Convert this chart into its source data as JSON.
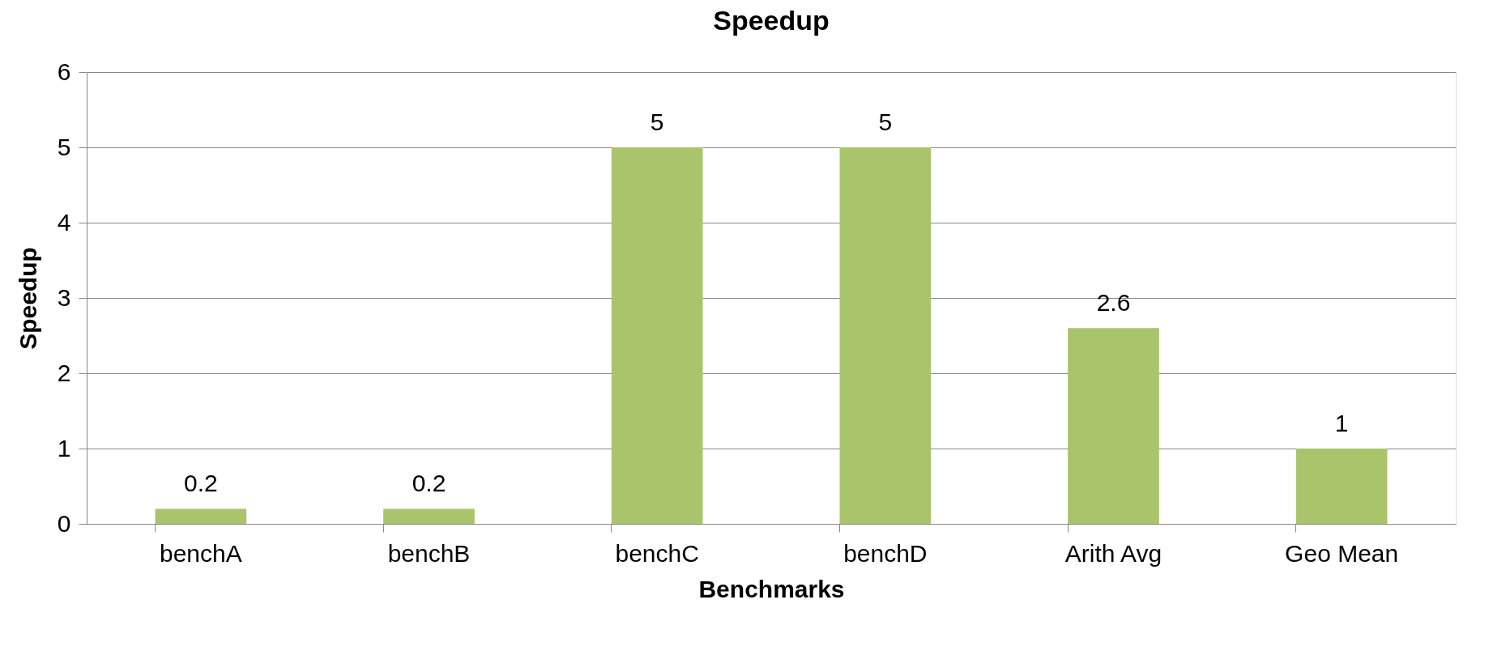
{
  "chart_data": {
    "type": "bar",
    "title": "Speedup",
    "xlabel": "Benchmarks",
    "ylabel": "Speedup",
    "categories": [
      "benchA",
      "benchB",
      "benchC",
      "benchD",
      "Arith Avg",
      "Geo Mean"
    ],
    "values": [
      0.2,
      0.2,
      5,
      5,
      2.6,
      1
    ],
    "color": "#aac46c",
    "ylim": [
      0,
      6
    ],
    "yticks": [
      0,
      1,
      2,
      3,
      4,
      5,
      6
    ],
    "grid": "y",
    "data_labels": true
  }
}
